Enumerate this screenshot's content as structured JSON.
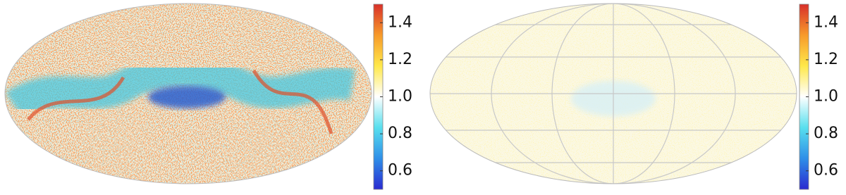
{
  "chart_data": [
    {
      "type": "map",
      "clim": [
        0.5,
        1.5
      ],
      "cticks": [
        0.6,
        0.8,
        {
          "value": 1,
          "label": "1.0"
        },
        1.2,
        1.4
      ],
      "colormap": [
        "#2a2ad0",
        "#2f8fe8",
        "#58dfee",
        "#ffffff",
        "#ffe84a",
        "#f79a2a",
        "#d8302a"
      ]
    },
    {
      "type": "map",
      "clim": [
        0.5,
        1.5
      ],
      "cticks": [
        0.6,
        0.8,
        {
          "value": 1,
          "label": "1.0"
        },
        1.2,
        1.4
      ],
      "colormap": [
        "#2a2ad0",
        "#2f8fe8",
        "#58dfee",
        "#ffffff",
        "#ffe84a",
        "#f79a2a",
        "#d8302a"
      ]
    }
  ]
}
